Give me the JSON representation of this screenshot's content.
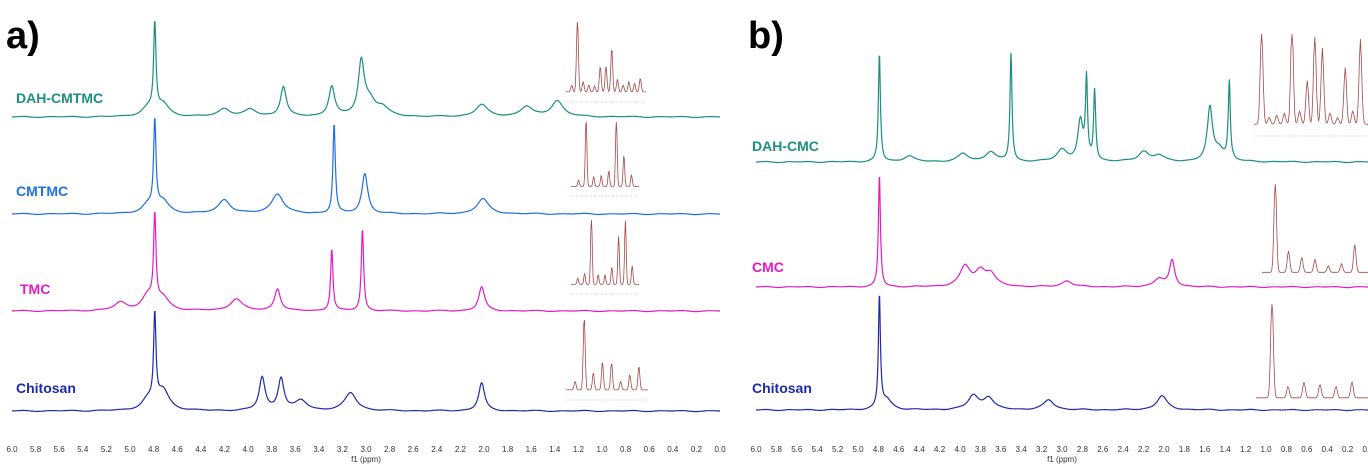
{
  "colors": {
    "teal": "#1b8f80",
    "blue_light": "#1f6fe0",
    "magenta": "#e21cc5",
    "navy": "#1f2aa8",
    "inset": "#a34a4a"
  },
  "chart_data": [
    {
      "type": "line",
      "panel": "a)",
      "xlabel": "f1 (ppm)",
      "xlim": [
        6.0,
        0.0
      ],
      "x_ticks": [
        "6.0",
        "5.8",
        "5.6",
        "5.4",
        "5.2",
        "5.0",
        "4.8",
        "4.6",
        "4.4",
        "4.2",
        "4.0",
        "3.8",
        "3.6",
        "3.4",
        "3.2",
        "3.0",
        "2.8",
        "2.6",
        "2.4",
        "2.2",
        "2.0",
        "1.8",
        "1.6",
        "1.4",
        "1.2",
        "1.0",
        "0.8",
        "0.6",
        "0.4",
        "0.2",
        "0.0"
      ],
      "series": [
        {
          "name": "DAH-CMTMC",
          "color": "#1b8f80",
          "peaks": [
            [
              4.79,
              88
            ],
            [
              4.72,
              12
            ],
            [
              4.85,
              8
            ],
            [
              4.2,
              8
            ],
            [
              3.98,
              7
            ],
            [
              3.7,
              30
            ],
            [
              3.29,
              30
            ],
            [
              3.04,
              52
            ],
            [
              2.97,
              15
            ],
            [
              2.86,
              8
            ],
            [
              2.02,
              12
            ],
            [
              1.64,
              10
            ],
            [
              1.38,
              16
            ]
          ]
        },
        {
          "name": "CMTMC",
          "color": "#1f6fe0",
          "peaks": [
            [
              4.79,
              88
            ],
            [
              4.72,
              12
            ],
            [
              4.85,
              8
            ],
            [
              4.2,
              14
            ],
            [
              3.75,
              20
            ],
            [
              3.27,
              90
            ],
            [
              3.01,
              40
            ],
            [
              2.01,
              15
            ]
          ]
        },
        {
          "name": "TMC",
          "color": "#e21cc5",
          "peaks": [
            [
              4.79,
              88
            ],
            [
              4.72,
              12
            ],
            [
              4.85,
              14
            ],
            [
              5.08,
              8
            ],
            [
              4.1,
              12
            ],
            [
              3.75,
              22
            ],
            [
              3.29,
              62
            ],
            [
              3.03,
              82
            ],
            [
              2.02,
              24
            ]
          ]
        },
        {
          "name": "Chitosan",
          "color": "#1f2aa8",
          "peaks": [
            [
              4.79,
              88
            ],
            [
              4.72,
              20
            ],
            [
              4.85,
              10
            ],
            [
              3.88,
              33
            ],
            [
              3.72,
              32
            ],
            [
              3.55,
              10
            ],
            [
              3.13,
              18
            ],
            [
              2.02,
              28
            ]
          ]
        }
      ]
    },
    {
      "type": "line",
      "panel": "b)",
      "xlabel": "f1 (ppm)",
      "xlim": [
        6.0,
        0.0
      ],
      "x_ticks": [
        "6.0",
        "5.8",
        "5.6",
        "5.4",
        "5.2",
        "5.0",
        "4.8",
        "4.6",
        "4.4",
        "4.2",
        "4.0",
        "3.8",
        "3.6",
        "3.4",
        "3.2",
        "3.0",
        "2.8",
        "2.6",
        "2.4",
        "2.2",
        "2.0",
        "1.8",
        "1.6",
        "1.4",
        "1.2",
        "1.0",
        "0.8",
        "0.6",
        "0.4",
        "0.2",
        "0.0"
      ],
      "series": [
        {
          "name": "DAH-CMC",
          "color": "#1b8f80",
          "peaks": [
            [
              4.79,
              108
            ],
            [
              4.5,
              6
            ],
            [
              3.97,
              8
            ],
            [
              3.7,
              10
            ],
            [
              3.5,
              108
            ],
            [
              3.0,
              12
            ],
            [
              2.82,
              40
            ],
            [
              2.76,
              80
            ],
            [
              2.68,
              70
            ],
            [
              2.2,
              10
            ],
            [
              2.05,
              6
            ],
            [
              1.55,
              52
            ],
            [
              1.46,
              12
            ],
            [
              1.36,
              78
            ]
          ]
        },
        {
          "name": "CMC",
          "color": "#e21cc5",
          "peaks": [
            [
              4.79,
              112
            ],
            [
              3.95,
              20
            ],
            [
              3.8,
              14
            ],
            [
              3.7,
              12
            ],
            [
              2.95,
              6
            ],
            [
              2.05,
              8
            ],
            [
              1.92,
              26
            ]
          ]
        },
        {
          "name": "Chitosan",
          "color": "#1f2aa8",
          "peaks": [
            [
              4.79,
              112
            ],
            [
              4.72,
              10
            ],
            [
              3.87,
              14
            ],
            [
              3.72,
              12
            ],
            [
              3.13,
              10
            ],
            [
              2.02,
              14
            ]
          ]
        }
      ]
    }
  ]
}
